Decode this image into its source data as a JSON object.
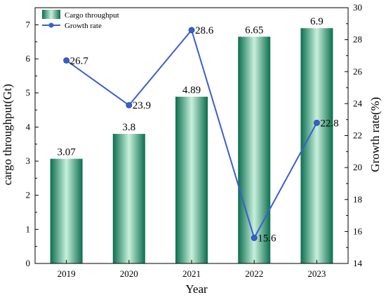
{
  "chart_data": {
    "type": "bar",
    "categories": [
      "2019",
      "2020",
      "2021",
      "2022",
      "2023"
    ],
    "series": [
      {
        "name": "Cargo throughput",
        "type": "bar",
        "axis": "left",
        "values": [
          3.07,
          3.8,
          4.89,
          6.65,
          6.9
        ],
        "labels": [
          "3.07",
          "3.8",
          "4.89",
          "6.65",
          "6.9"
        ],
        "color_dark": "#0b6e4f",
        "color_light": "#c8f0dc"
      },
      {
        "name": "Growth rate",
        "type": "line",
        "axis": "right",
        "values": [
          26.7,
          23.9,
          28.6,
          15.6,
          22.8
        ],
        "labels": [
          "26.7",
          "23.9",
          "28.6",
          "15.6",
          "22.8"
        ],
        "color": "#3a5fcd",
        "marker": "circle"
      }
    ],
    "xlabel": "Year",
    "ylabel": "cargo throughput(Gt)",
    "y2label": "Growth rate(%)",
    "ylim": [
      0,
      7.5
    ],
    "y2lim": [
      14,
      30
    ],
    "yticks": [
      "0",
      "1",
      "2",
      "3",
      "4",
      "5",
      "6",
      "7"
    ],
    "y2ticks": [
      "14",
      "16",
      "18",
      "20",
      "22",
      "24",
      "26",
      "28",
      "30"
    ],
    "legend": {
      "placement": "top-left",
      "items": [
        "Cargo throughput",
        "Growth rate"
      ]
    },
    "grid": false
  }
}
